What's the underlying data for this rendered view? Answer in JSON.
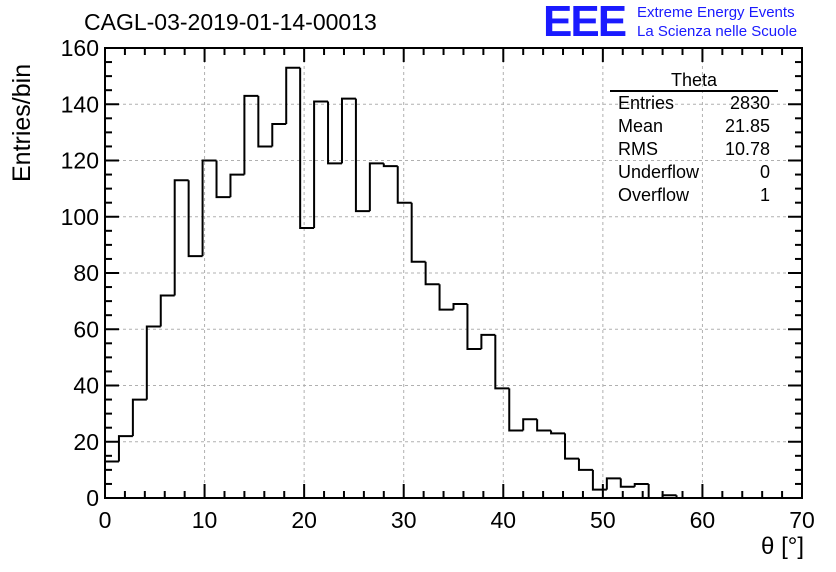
{
  "header": {
    "run_id": "CAGL-03-2019-01-14-00013",
    "logo": "EEE",
    "logo_line1": "Extreme Energy Events",
    "logo_line2": "La Scienza nelle Scuole"
  },
  "stats": {
    "name": "Theta",
    "rows": [
      {
        "label": "Entries",
        "value": "2830"
      },
      {
        "label": "Mean",
        "value": "21.85"
      },
      {
        "label": "RMS",
        "value": "10.78"
      },
      {
        "label": "Underflow",
        "value": "0"
      },
      {
        "label": "Overflow",
        "value": "1"
      }
    ]
  },
  "chart_data": {
    "type": "bar",
    "style": "step-histogram",
    "title": "CAGL-03-2019-01-14-00013",
    "xlabel": "θ [°]",
    "ylabel": "Entries/bin",
    "xlim": [
      0,
      70
    ],
    "ylim": [
      0,
      160
    ],
    "bin_width": 1.4,
    "x_ticks": [
      0,
      10,
      20,
      30,
      40,
      50,
      60,
      70
    ],
    "y_ticks": [
      0,
      20,
      40,
      60,
      80,
      100,
      120,
      140,
      160
    ],
    "grid": true,
    "values": [
      13,
      22,
      35,
      61,
      72,
      113,
      86,
      120,
      107,
      115,
      143,
      125,
      133,
      153,
      96,
      141,
      119,
      142,
      102,
      119,
      118,
      105,
      84,
      76,
      67,
      69,
      53,
      58,
      39,
      24,
      28,
      24,
      23,
      14,
      10,
      3,
      7,
      4,
      5,
      0,
      1,
      0,
      0,
      0,
      0,
      0,
      0,
      0,
      0,
      0
    ],
    "colors": {
      "line": "#000000",
      "grid": "#b0b0b0",
      "logo": "#1a1aff"
    }
  }
}
